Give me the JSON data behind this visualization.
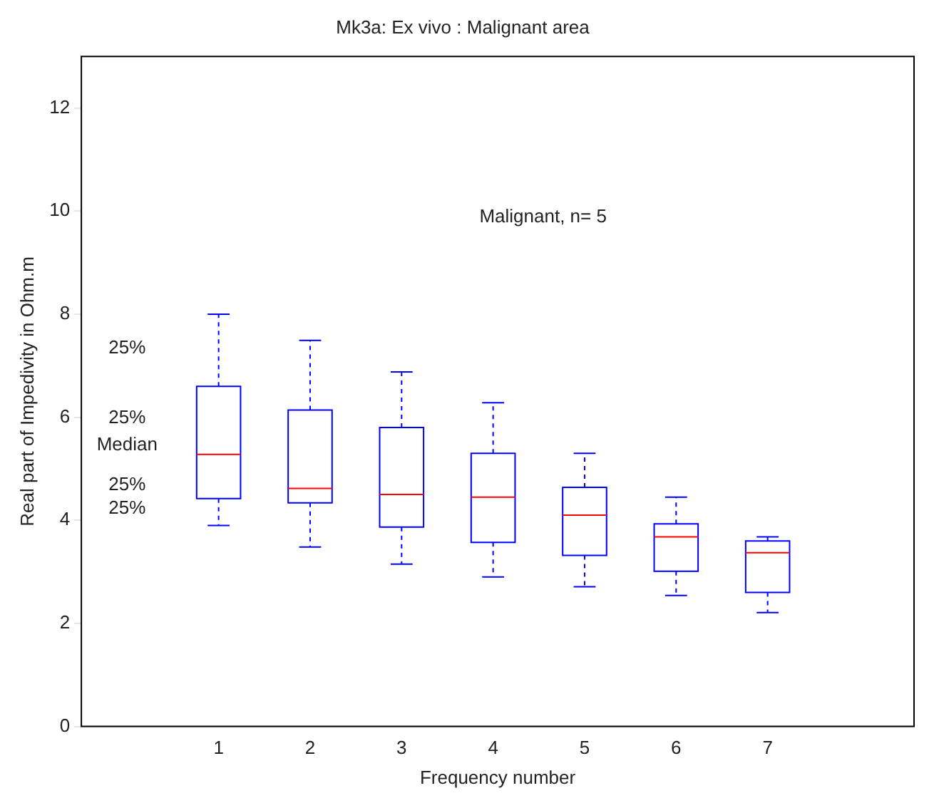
{
  "chart_data": {
    "type": "box",
    "title": "Mk3a: Ex vivo : Malignant area",
    "xlabel": "Frequency number",
    "ylabel": "Real part of Impedivity in Ohm.m",
    "categories": [
      "1",
      "2",
      "3",
      "4",
      "5",
      "6",
      "7"
    ],
    "series": [
      {
        "color": "#0000ff",
        "boxes": [
          {
            "low": 3.9,
            "q1": 4.42,
            "median": 5.28,
            "q3": 6.6,
            "high": 8.0
          },
          {
            "low": 3.48,
            "q1": 4.34,
            "median": 4.62,
            "q3": 6.14,
            "high": 7.49
          },
          {
            "low": 3.15,
            "q1": 3.87,
            "median": 4.5,
            "q3": 5.8,
            "high": 6.88
          },
          {
            "low": 2.9,
            "q1": 3.57,
            "median": 4.45,
            "q3": 5.3,
            "high": 6.28
          },
          {
            "low": 2.71,
            "q1": 3.32,
            "median": 4.1,
            "q3": 4.64,
            "high": 5.3
          },
          {
            "low": 2.54,
            "q1": 3.01,
            "median": 3.68,
            "q3": 3.93,
            "high": 4.45
          },
          {
            "low": 2.21,
            "q1": 2.6,
            "median": 3.37,
            "q3": 3.6,
            "high": 3.68
          }
        ]
      }
    ],
    "ylim": [
      0,
      13
    ],
    "yticks": [
      0,
      2,
      4,
      6,
      8,
      10,
      12
    ],
    "grid": false,
    "legend": false,
    "annotations": [
      "Malignant, n= 5",
      "25%",
      "25%",
      "Median",
      "25%",
      "25%"
    ]
  }
}
